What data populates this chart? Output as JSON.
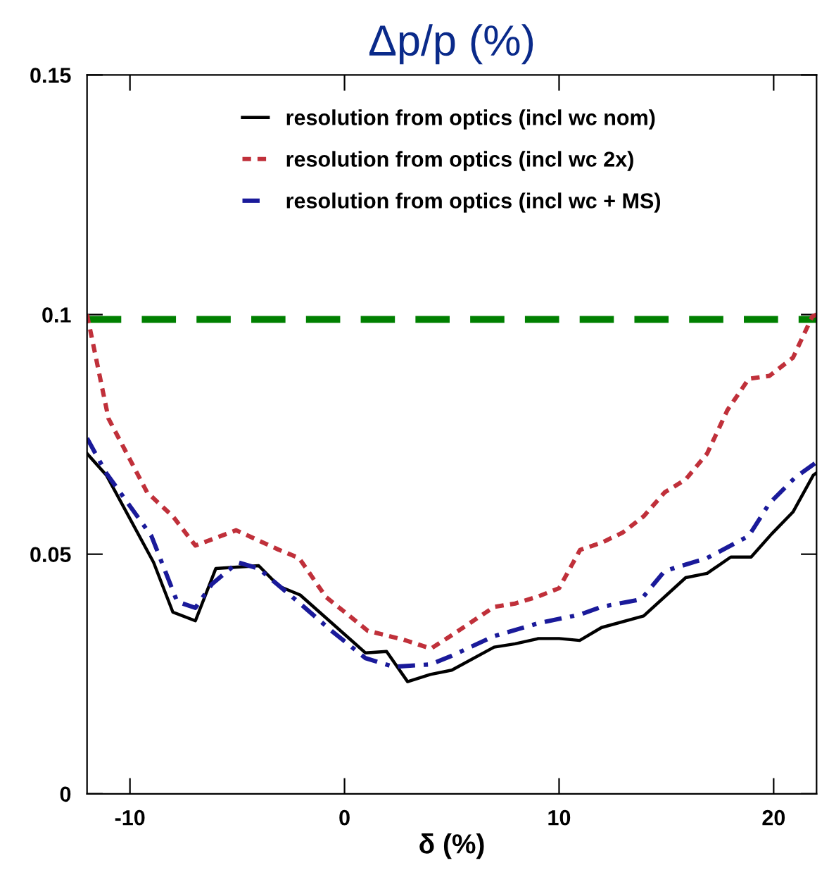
{
  "chart_data": {
    "type": "line",
    "title": "Δp/p (%)",
    "xlabel": "δ (%)",
    "xlim": [
      -12,
      22
    ],
    "ylim": [
      0,
      0.15
    ],
    "xticks": [
      -10,
      0,
      10,
      20
    ],
    "yticks": [
      0,
      {
        "value": 0.05,
        "label": "0.05"
      },
      {
        "value": 0.1,
        "label": "0.1"
      },
      {
        "value": 0.15,
        "label": "0.15"
      }
    ],
    "grid": false,
    "legend": "top",
    "marker": "none",
    "series": [
      {
        "name": "resolution from optics (incl wc nom)",
        "color": "#000000",
        "line_style": "solid",
        "x": [
          -12,
          -11.1,
          -8.9,
          -8.0,
          -6.95,
          -6.0,
          -4.0,
          -3.05,
          -2.07,
          0.98,
          1.96,
          2.94,
          4.0,
          5.0,
          6.97,
          7.95,
          9.04,
          10.0,
          10.96,
          11.98,
          13.94,
          15.9,
          16.9,
          18.0,
          18.95,
          19.9,
          20.9,
          21.85,
          22
        ],
        "values": [
          0.071,
          0.0665,
          0.0483,
          0.0379,
          0.0361,
          0.047,
          0.0476,
          0.0433,
          0.0415,
          0.0294,
          0.0297,
          0.0234,
          0.0249,
          0.0258,
          0.0306,
          0.0313,
          0.0324,
          0.0324,
          0.032,
          0.0347,
          0.0371,
          0.0451,
          0.046,
          0.0494,
          0.0494,
          0.0542,
          0.0588,
          0.0665,
          0.067
        ]
      },
      {
        "name": "resolution from optics (incl wc 2x)",
        "color": "#c0303a",
        "line_style": "dotted",
        "x": [
          -12,
          -11.0,
          -9.2,
          -8.0,
          -6.95,
          -5.05,
          -3.1,
          -2.12,
          -0.87,
          1.09,
          2.72,
          4.03,
          5.0,
          6.97,
          7.95,
          9.04,
          10.0,
          10.98,
          11.98,
          12.96,
          13.94,
          14.92,
          15.9,
          16.9,
          17.85,
          18.84,
          19.8,
          20.9,
          21.8,
          22
        ],
        "values": [
          0.1,
          0.0783,
          0.0629,
          0.0579,
          0.0518,
          0.055,
          0.051,
          0.0492,
          0.0411,
          0.034,
          0.0322,
          0.0303,
          0.0331,
          0.039,
          0.0397,
          0.0412,
          0.0429,
          0.0509,
          0.0524,
          0.0545,
          0.0579,
          0.0629,
          0.0656,
          0.071,
          0.0801,
          0.0866,
          0.0872,
          0.091,
          0.0996,
          0.1
        ]
      },
      {
        "name": "resolution from optics (incl wc + MS)",
        "color": "#1a1a9a",
        "line_style": "dashdot",
        "x": [
          -12,
          -11.1,
          -9.0,
          -7.8,
          -6.95,
          -6.17,
          -4.97,
          -4.0,
          -2.07,
          -0.55,
          0.98,
          2.29,
          4.0,
          5.0,
          6.97,
          9.04,
          10.98,
          11.98,
          13.83,
          14.92,
          16.9,
          18.84,
          19.8,
          21.0,
          22
        ],
        "values": [
          0.0742,
          0.0669,
          0.0538,
          0.0401,
          0.0388,
          0.0438,
          0.0483,
          0.047,
          0.0397,
          0.0338,
          0.0283,
          0.0265,
          0.027,
          0.0288,
          0.0329,
          0.0356,
          0.0374,
          0.039,
          0.0406,
          0.0465,
          0.0492,
          0.0538,
          0.0606,
          0.066,
          0.0692
        ]
      }
    ],
    "ref_lines": [
      {
        "axis": "y",
        "value": 0.099,
        "color": "#008000",
        "line_style": "dashed"
      }
    ]
  }
}
